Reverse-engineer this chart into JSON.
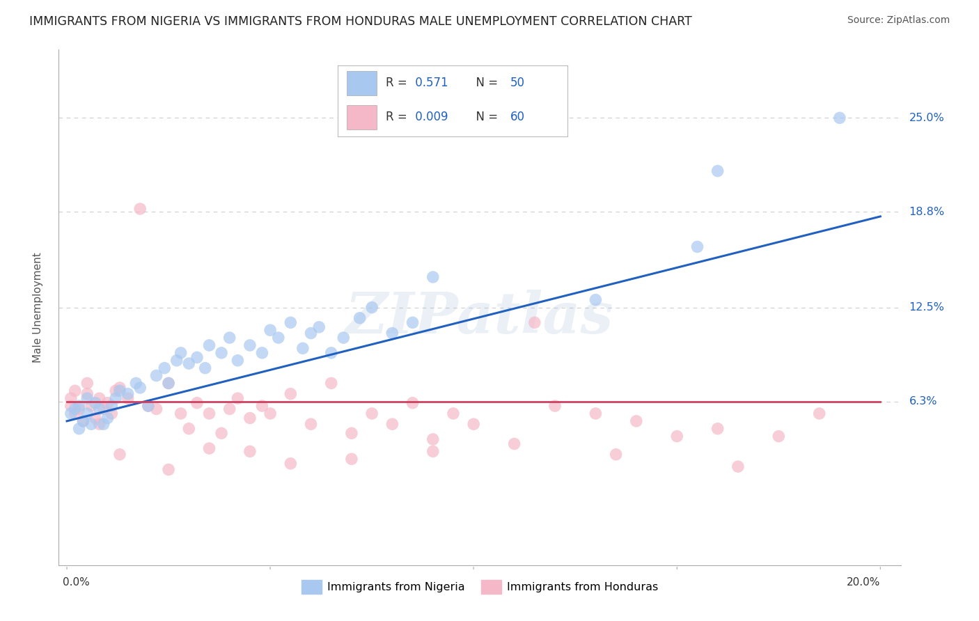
{
  "title": "IMMIGRANTS FROM NIGERIA VS IMMIGRANTS FROM HONDURAS MALE UNEMPLOYMENT CORRELATION CHART",
  "source": "Source: ZipAtlas.com",
  "ylabel": "Male Unemployment",
  "xlim": [
    -0.002,
    0.205
  ],
  "ylim": [
    -0.045,
    0.295
  ],
  "yticks": [
    0.063,
    0.125,
    0.188,
    0.25
  ],
  "ytick_labels": [
    "6.3%",
    "12.5%",
    "18.8%",
    "25.0%"
  ],
  "nigeria_color": "#A8C8F0",
  "honduras_color": "#F5B8C8",
  "nigeria_line_color": "#2060C0",
  "honduras_line_color": "#D04060",
  "nigeria_R": 0.571,
  "nigeria_N": 50,
  "honduras_R": 0.009,
  "honduras_N": 60,
  "nigeria_x": [
    0.001,
    0.002,
    0.003,
    0.003,
    0.004,
    0.005,
    0.005,
    0.006,
    0.007,
    0.008,
    0.009,
    0.01,
    0.011,
    0.012,
    0.013,
    0.015,
    0.017,
    0.018,
    0.02,
    0.022,
    0.024,
    0.025,
    0.027,
    0.028,
    0.03,
    0.032,
    0.034,
    0.035,
    0.038,
    0.04,
    0.042,
    0.045,
    0.048,
    0.05,
    0.052,
    0.055,
    0.058,
    0.06,
    0.062,
    0.065,
    0.068,
    0.072,
    0.075,
    0.08,
    0.085,
    0.09,
    0.13,
    0.155,
    0.16,
    0.19
  ],
  "nigeria_y": [
    0.055,
    0.058,
    0.06,
    0.045,
    0.05,
    0.055,
    0.065,
    0.048,
    0.062,
    0.058,
    0.048,
    0.052,
    0.06,
    0.065,
    0.07,
    0.068,
    0.075,
    0.072,
    0.06,
    0.08,
    0.085,
    0.075,
    0.09,
    0.095,
    0.088,
    0.092,
    0.085,
    0.1,
    0.095,
    0.105,
    0.09,
    0.1,
    0.095,
    0.11,
    0.105,
    0.115,
    0.098,
    0.108,
    0.112,
    0.095,
    0.105,
    0.118,
    0.125,
    0.108,
    0.115,
    0.145,
    0.13,
    0.165,
    0.215,
    0.25
  ],
  "honduras_x": [
    0.001,
    0.001,
    0.002,
    0.002,
    0.003,
    0.004,
    0.005,
    0.005,
    0.006,
    0.007,
    0.008,
    0.008,
    0.009,
    0.01,
    0.011,
    0.012,
    0.013,
    0.015,
    0.018,
    0.02,
    0.022,
    0.025,
    0.028,
    0.03,
    0.032,
    0.035,
    0.038,
    0.04,
    0.042,
    0.045,
    0.048,
    0.05,
    0.055,
    0.06,
    0.065,
    0.07,
    0.075,
    0.08,
    0.085,
    0.09,
    0.095,
    0.1,
    0.115,
    0.12,
    0.13,
    0.14,
    0.15,
    0.16,
    0.175,
    0.185,
    0.013,
    0.025,
    0.035,
    0.045,
    0.055,
    0.07,
    0.09,
    0.11,
    0.135,
    0.165
  ],
  "honduras_y": [
    0.06,
    0.065,
    0.055,
    0.07,
    0.058,
    0.05,
    0.068,
    0.075,
    0.06,
    0.052,
    0.048,
    0.065,
    0.058,
    0.062,
    0.055,
    0.07,
    0.072,
    0.065,
    0.19,
    0.06,
    0.058,
    0.075,
    0.055,
    0.045,
    0.062,
    0.055,
    0.042,
    0.058,
    0.065,
    0.052,
    0.06,
    0.055,
    0.068,
    0.048,
    0.075,
    0.042,
    0.055,
    0.048,
    0.062,
    0.038,
    0.055,
    0.048,
    0.115,
    0.06,
    0.055,
    0.05,
    0.04,
    0.045,
    0.04,
    0.055,
    0.028,
    0.018,
    0.032,
    0.03,
    0.022,
    0.025,
    0.03,
    0.035,
    0.028,
    0.02
  ],
  "background_color": "#FFFFFF",
  "grid_color": "#CCCCCC",
  "watermark_text": "ZIPatlas",
  "legend_series_nigeria": "Immigrants from Nigeria",
  "legend_series_honduras": "Immigrants from Honduras",
  "nigeria_line_start_y": 0.05,
  "nigeria_line_end_y": 0.185,
  "honduras_line_y": 0.063
}
